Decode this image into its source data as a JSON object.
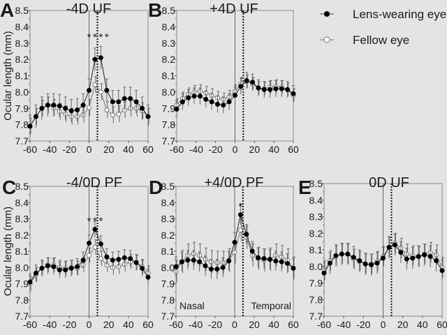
{
  "legend": {
    "lens": "Lens-wearing eye",
    "fellow": "Fellow eye"
  },
  "chart_data": [
    {
      "type": "line",
      "panel": "A",
      "title": "-4D UF",
      "ylabel": "Ocular length (mm)",
      "xlim": [
        -60,
        60
      ],
      "ylim": [
        7.7,
        8.5
      ],
      "xticks": [
        "-60",
        "-40",
        "-20",
        "0",
        "20",
        "40",
        "60"
      ],
      "yticks": [
        "7.7",
        "7.8",
        "7.9",
        "8.0",
        "8.1",
        "8.2",
        "8.3",
        "8.4",
        "8.5"
      ],
      "x": [
        -60,
        -54,
        -48,
        -42,
        -36,
        -30,
        -24,
        -18,
        -12,
        -6,
        0,
        6,
        12,
        18,
        24,
        30,
        36,
        42,
        48,
        54,
        60
      ],
      "series": [
        {
          "name": "Lens-wearing eye",
          "err": 0.07,
          "values": [
            7.79,
            7.85,
            7.9,
            7.92,
            7.92,
            7.915,
            7.9,
            7.885,
            7.89,
            7.92,
            8.01,
            8.2,
            8.21,
            8.01,
            7.94,
            7.94,
            7.96,
            7.96,
            7.94,
            7.9,
            7.85
          ]
        },
        {
          "name": "Fellow eye",
          "err": 0.05,
          "values": [
            7.79,
            7.85,
            7.9,
            7.92,
            7.905,
            7.88,
            7.865,
            7.85,
            7.85,
            7.86,
            7.905,
            8.045,
            8.0,
            7.89,
            7.86,
            7.865,
            7.89,
            7.9,
            7.9,
            7.885,
            7.85
          ]
        }
      ],
      "vline_solid": 0,
      "vline_dotted": 8.5,
      "annotations": [
        {
          "text": "*",
          "x": 0,
          "y": 8.35
        },
        {
          "text": "*",
          "x": 6,
          "y": 8.35
        },
        {
          "text": "*",
          "x": 12,
          "y": 8.35
        },
        {
          "text": "*",
          "x": 18,
          "y": 8.35
        }
      ],
      "side_labels": []
    },
    {
      "type": "line",
      "panel": "B",
      "title": "+4D UF",
      "ylabel": "",
      "xlim": [
        -60,
        60
      ],
      "ylim": [
        7.7,
        8.5
      ],
      "xticks": [
        "-60",
        "-40",
        "-20",
        "0",
        "20",
        "40",
        "60"
      ],
      "yticks": [
        "7.7",
        "7.8",
        "7.9",
        "8.0",
        "8.1",
        "8.2",
        "8.3",
        "8.4",
        "8.5"
      ],
      "x": [
        -60,
        -54,
        -48,
        -42,
        -36,
        -30,
        -24,
        -18,
        -12,
        -6,
        0,
        6,
        12,
        18,
        24,
        30,
        36,
        42,
        48,
        54,
        60
      ],
      "series": [
        {
          "name": "Lens-wearing eye",
          "err": 0.05,
          "values": [
            7.895,
            7.94,
            7.965,
            7.975,
            7.975,
            7.955,
            7.94,
            7.925,
            7.92,
            7.94,
            7.98,
            8.035,
            8.07,
            8.06,
            8.025,
            8.015,
            8.015,
            8.02,
            8.02,
            8.015,
            7.99
          ]
        },
        {
          "name": "Fellow eye",
          "err": 0.04,
          "values": [
            7.92,
            7.96,
            7.985,
            8.0,
            8.005,
            7.995,
            7.98,
            7.965,
            7.955,
            7.97,
            8.005,
            8.05,
            8.065,
            8.05,
            8.025,
            8.02,
            8.03,
            8.035,
            8.03,
            8.015,
            7.98
          ]
        }
      ],
      "vline_solid": 0,
      "vline_dotted": 8.5,
      "annotations": [],
      "side_labels": []
    },
    {
      "type": "line",
      "panel": "C",
      "title": "-4/0D PF",
      "ylabel": "Ocular length (mm)",
      "xlim": [
        -60,
        60
      ],
      "ylim": [
        7.7,
        8.5
      ],
      "xticks": [
        "-60",
        "-40",
        "-20",
        "0",
        "20",
        "40",
        "60"
      ],
      "yticks": [
        "7.7",
        "7.8",
        "7.9",
        "8.0",
        "8.1",
        "8.2",
        "8.3",
        "8.4",
        "8.5"
      ],
      "x": [
        -60,
        -54,
        -48,
        -42,
        -36,
        -30,
        -24,
        -18,
        -12,
        -6,
        0,
        6,
        12,
        18,
        24,
        30,
        36,
        42,
        48,
        54,
        60
      ],
      "series": [
        {
          "name": "Lens-wearing eye",
          "err": 0.05,
          "values": [
            7.91,
            7.965,
            7.995,
            8.01,
            8.005,
            7.985,
            7.985,
            7.995,
            8.005,
            8.045,
            8.15,
            8.235,
            8.145,
            8.065,
            8.045,
            8.05,
            8.06,
            8.055,
            8.03,
            7.995,
            7.94
          ]
        },
        {
          "name": "Fellow eye",
          "err": 0.045,
          "values": [
            7.9,
            7.955,
            7.995,
            8.015,
            8.015,
            8.0,
            7.995,
            8.0,
            7.995,
            8.015,
            8.075,
            8.125,
            8.055,
            8.015,
            8.0,
            8.005,
            8.02,
            8.035,
            8.03,
            8.005,
            7.965
          ]
        }
      ],
      "vline_solid": 0,
      "vline_dotted": 8.5,
      "annotations": [
        {
          "text": "*",
          "x": 0,
          "y": 8.3
        },
        {
          "text": "*",
          "x": 6,
          "y": 8.3
        },
        {
          "text": "*",
          "x": 12,
          "y": 8.3
        }
      ],
      "side_labels": []
    },
    {
      "type": "line",
      "panel": "D",
      "title": "+4/0D PF",
      "ylabel": "",
      "xlim": [
        -60,
        60
      ],
      "ylim": [
        7.7,
        8.5
      ],
      "xticks": [
        "-60",
        "-40",
        "-20",
        "0",
        "20",
        "40",
        "60"
      ],
      "yticks": [
        "7.7",
        "7.8",
        "7.9",
        "8.0",
        "8.1",
        "8.2",
        "8.3",
        "8.4",
        "8.5"
      ],
      "x": [
        -60,
        -54,
        -48,
        -42,
        -36,
        -30,
        -24,
        -18,
        -12,
        -6,
        0,
        6,
        12,
        18,
        24,
        30,
        36,
        42,
        48,
        54,
        60
      ],
      "series": [
        {
          "name": "Lens-wearing eye",
          "err": 0.06,
          "values": [
            8.005,
            8.035,
            8.045,
            8.045,
            8.035,
            8.01,
            7.99,
            7.99,
            8.0,
            8.04,
            8.155,
            8.325,
            8.205,
            8.1,
            8.06,
            8.055,
            8.05,
            8.04,
            8.035,
            8.025,
            7.995
          ]
        },
        {
          "name": "Fellow eye",
          "err": 0.07,
          "values": [
            7.975,
            8.035,
            8.075,
            8.085,
            8.075,
            8.05,
            8.035,
            8.03,
            8.03,
            8.045,
            8.095,
            8.23,
            8.185,
            8.075,
            8.055,
            8.045,
            8.05,
            8.075,
            8.065,
            8.045,
            7.995
          ]
        }
      ],
      "vline_solid": 0,
      "vline_dotted": 8.5,
      "annotations": [
        {
          "text": "*",
          "x": 6,
          "y": 8.39
        }
      ],
      "side_labels": [
        {
          "text": "Nasal",
          "pos": "bottom-left"
        },
        {
          "text": "Temporal",
          "pos": "bottom-right"
        }
      ]
    },
    {
      "type": "line",
      "panel": "E",
      "title": "0D UF",
      "ylabel": "",
      "xlim": [
        -60,
        60
      ],
      "ylim": [
        7.7,
        8.5
      ],
      "xticks": [
        "-60",
        "-40",
        "-20",
        "0",
        "20",
        "40",
        "60"
      ],
      "yticks": [
        "7.7",
        "7.8",
        "7.9",
        "8.0",
        "8.1",
        "8.2",
        "8.3",
        "8.4",
        "8.5"
      ],
      "x": [
        -60,
        -54,
        -48,
        -42,
        -36,
        -30,
        -24,
        -18,
        -12,
        -6,
        0,
        6,
        12,
        18,
        24,
        30,
        36,
        42,
        48,
        54,
        60
      ],
      "series": [
        {
          "name": "Lens-wearing eye",
          "err": 0.065,
          "values": [
            7.96,
            8.02,
            8.065,
            8.075,
            8.075,
            8.055,
            8.035,
            8.015,
            8.01,
            8.02,
            8.05,
            8.115,
            8.13,
            8.085,
            8.045,
            8.05,
            8.06,
            8.07,
            8.06,
            8.035,
            7.975
          ]
        },
        {
          "name": "Fellow eye",
          "err": 0.06,
          "values": [
            7.975,
            8.035,
            8.065,
            8.075,
            8.075,
            8.045,
            8.03,
            8.015,
            8.015,
            8.03,
            8.06,
            8.115,
            8.14,
            8.11,
            8.075,
            8.065,
            8.06,
            8.075,
            8.085,
            8.07,
            7.995
          ]
        }
      ],
      "vline_solid": 0,
      "vline_dotted": 8.5,
      "annotations": [],
      "side_labels": []
    }
  ]
}
